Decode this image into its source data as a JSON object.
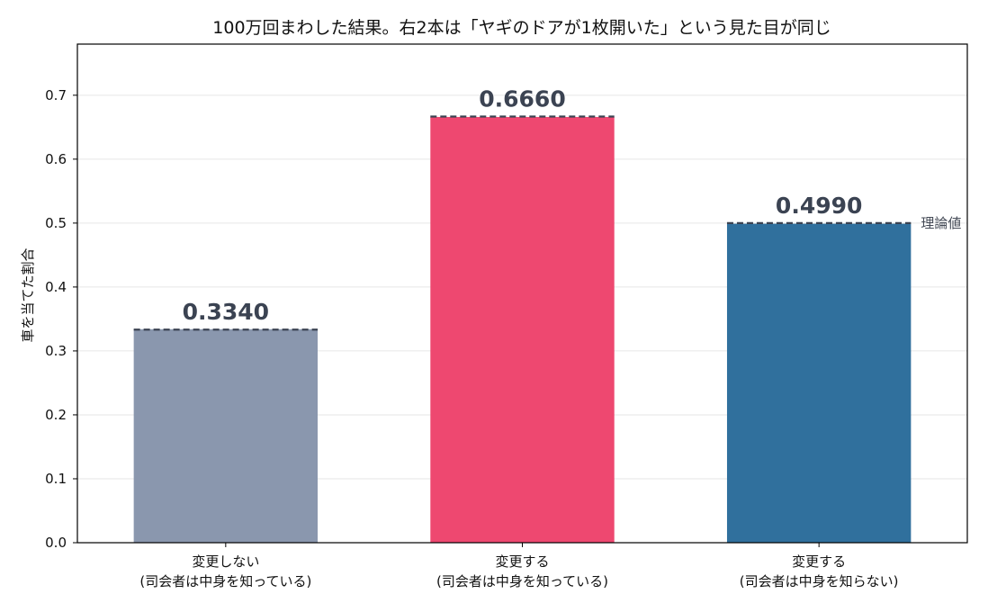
{
  "chart_data": {
    "type": "bar",
    "title": "100万回まわした結果。右2本は「ヤギのドアが1枚開いた」という見た目が同じ",
    "xlabel": "",
    "ylabel": "車を当てた割合",
    "ylim": [
      0,
      0.78
    ],
    "yticks": [
      "0.0",
      "0.1",
      "0.2",
      "0.3",
      "0.4",
      "0.5",
      "0.6",
      "0.7"
    ],
    "grid": "horizontal",
    "categories": [
      {
        "line1": "変更しない",
        "line2": "(司会者は中身を知っている)"
      },
      {
        "line1": "変更する",
        "line2": "(司会者は中身を知っている)"
      },
      {
        "line1": "変更する",
        "line2": "(司会者は中身を知らない)"
      }
    ],
    "values": [
      0.334,
      0.666,
      0.499
    ],
    "value_labels": [
      "0.3340",
      "0.6660",
      "0.4990"
    ],
    "theoretical": [
      0.3333,
      0.6667,
      0.5
    ],
    "theoretical_label": "理論値",
    "colors": [
      "#8a97ae",
      "#ee4870",
      "#30709d"
    ]
  }
}
